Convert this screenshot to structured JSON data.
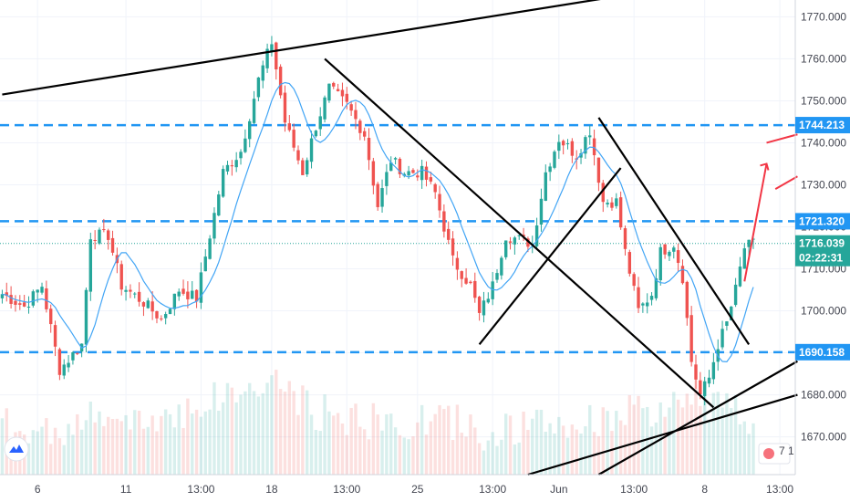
{
  "chart_data": {
    "type": "candlestick",
    "title": "",
    "xlabel": "",
    "ylabel": "",
    "ylim": [
      1661,
      1774
    ],
    "y_ticks": [
      1670,
      1680,
      1690,
      1700,
      1710,
      1720,
      1730,
      1740,
      1750,
      1760,
      1770
    ],
    "y_tick_labels": [
      "1670.000",
      "1680.000",
      "1690.000",
      "1700.000",
      "1710.000",
      "1720.000",
      "1730.000",
      "1740.000",
      "1750.000",
      "1760.000",
      "1770.000"
    ],
    "x_tick_labels": [
      "6",
      "11",
      "13:00",
      "18",
      "13:00",
      "25",
      "13:00",
      "Jun",
      "13:00",
      "8",
      "13:00"
    ],
    "x_tick_bar_index": [
      8,
      28,
      45,
      61,
      78,
      94,
      111,
      126,
      143,
      159,
      176
    ],
    "bar_count": 180,
    "last_bar_index": 170,
    "grid": true,
    "levels": [
      {
        "value": 1744.213,
        "label": "1744.213",
        "color": "#2196f3"
      },
      {
        "value": 1721.32,
        "label": "1721.320",
        "color": "#2196f3"
      },
      {
        "value": 1690.158,
        "label": "1690.158",
        "color": "#2196f3"
      }
    ],
    "current_price": {
      "value": 1716.039,
      "label": "1716.039",
      "countdown": "02:22:31",
      "color": "#26a69a"
    },
    "colors": {
      "up": "#26a69a",
      "down": "#ef5350",
      "ma": "#42a5f5",
      "trendline": "#000000",
      "projection": "#f23645",
      "grid": "#f0f3fa",
      "axis_text": "#434651"
    },
    "close_anchors": [
      [
        0,
        1704
      ],
      [
        5,
        1701
      ],
      [
        9,
        1706
      ],
      [
        13,
        1686
      ],
      [
        18,
        1692
      ],
      [
        20,
        1718
      ],
      [
        24,
        1718
      ],
      [
        27,
        1706
      ],
      [
        32,
        1702
      ],
      [
        36,
        1698
      ],
      [
        40,
        1705
      ],
      [
        44,
        1703
      ],
      [
        47,
        1718
      ],
      [
        50,
        1733
      ],
      [
        54,
        1738
      ],
      [
        58,
        1755
      ],
      [
        61,
        1764
      ],
      [
        64,
        1745
      ],
      [
        68,
        1733
      ],
      [
        71,
        1744
      ],
      [
        74,
        1753
      ],
      [
        78,
        1749
      ],
      [
        82,
        1742
      ],
      [
        85,
        1725
      ],
      [
        88,
        1736
      ],
      [
        91,
        1733
      ],
      [
        95,
        1733
      ],
      [
        98,
        1728
      ],
      [
        102,
        1712
      ],
      [
        106,
        1706
      ],
      [
        108,
        1699
      ],
      [
        111,
        1706
      ],
      [
        114,
        1718
      ],
      [
        117,
        1717
      ],
      [
        120,
        1716
      ],
      [
        123,
        1733
      ],
      [
        126,
        1741
      ],
      [
        130,
        1737
      ],
      [
        133,
        1743
      ],
      [
        136,
        1726
      ],
      [
        139,
        1726
      ],
      [
        141,
        1714
      ],
      [
        144,
        1700
      ],
      [
        147,
        1704
      ],
      [
        149,
        1714
      ],
      [
        152,
        1716
      ],
      [
        154,
        1708
      ],
      [
        156,
        1688
      ],
      [
        158,
        1680
      ],
      [
        160,
        1684
      ],
      [
        162,
        1692
      ],
      [
        164,
        1697
      ],
      [
        166,
        1705
      ],
      [
        168,
        1715
      ],
      [
        170,
        1716
      ]
    ],
    "volume_anchors": [
      [
        0,
        4
      ],
      [
        10,
        3
      ],
      [
        20,
        5
      ],
      [
        30,
        4
      ],
      [
        40,
        6
      ],
      [
        50,
        8
      ],
      [
        58,
        9
      ],
      [
        62,
        10
      ],
      [
        70,
        6
      ],
      [
        80,
        5
      ],
      [
        90,
        4
      ],
      [
        100,
        5
      ],
      [
        110,
        3
      ],
      [
        120,
        4
      ],
      [
        130,
        4
      ],
      [
        140,
        6
      ],
      [
        150,
        5
      ],
      [
        156,
        9
      ],
      [
        160,
        7
      ],
      [
        170,
        5
      ],
      [
        175,
        3
      ]
    ],
    "trendlines": [
      {
        "name": "upper-channel",
        "from": [
          0,
          1751.5
        ],
        "to": [
          140,
          1775
        ]
      },
      {
        "name": "falling-wedge-upper",
        "from": [
          73,
          1760
        ],
        "to": [
          161,
          1677
        ]
      },
      {
        "name": "rising-line-left",
        "from": [
          108,
          1692
        ],
        "to": [
          140,
          1734
        ]
      },
      {
        "name": "falling-line-right",
        "from": [
          135,
          1746
        ],
        "to": [
          169,
          1692
        ]
      },
      {
        "name": "rising-support-low",
        "from": [
          119,
          1661
        ],
        "to": [
          180,
          1680
        ]
      },
      {
        "name": "rising-support-steep",
        "from": [
          135,
          1661
        ],
        "to": [
          180,
          1688
        ]
      }
    ],
    "projection_arrows": [
      {
        "name": "projection-main",
        "from": [
          168,
          1707
        ],
        "to": [
          173,
          1735
        ]
      },
      {
        "name": "projection-upper",
        "from": [
          173,
          1740
        ],
        "to": [
          180,
          1742
        ]
      },
      {
        "name": "projection-lower",
        "from": [
          175,
          1729
        ],
        "to": [
          180,
          1732
        ]
      }
    ]
  },
  "branding": {
    "logo_icon": "tradingview-logo-icon"
  },
  "toolbar": {
    "flag_badge": "7 1"
  }
}
